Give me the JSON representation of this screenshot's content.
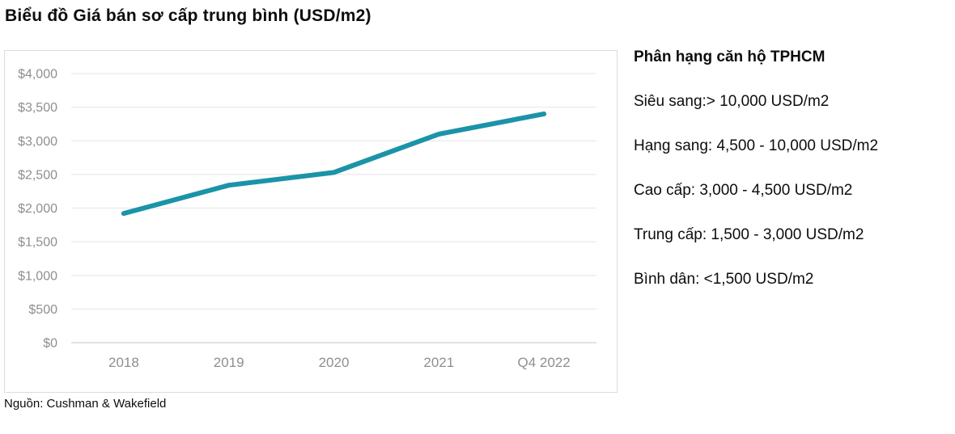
{
  "title": "Biểu đồ Giá bán sơ cấp trung bình (USD/m2)",
  "source": "Nguồn: Cushman & Wakefield",
  "legend": {
    "title": "Phân hạng căn hộ TPHCM",
    "items": [
      "Siêu sang:> 10,000 USD/m2",
      "Hạng sang: 4,500 - 10,000 USD/m2",
      "Cao cấp: 3,000 - 4,500 USD/m2",
      "Trung cấp: 1,500 - 3,000 USD/m2",
      "Bình dân: <1,500 USD/m2"
    ]
  },
  "chart_data": {
    "type": "line",
    "title": "Biểu đồ Giá bán sơ cấp trung bình (USD/m2)",
    "categories": [
      "2018",
      "2019",
      "2020",
      "2021",
      "Q4 2022"
    ],
    "values": [
      1920,
      2340,
      2530,
      3100,
      3400
    ],
    "series_name": "Giá bán sơ cấp trung bình (USD/m2)",
    "xlabel": "",
    "ylabel": "",
    "ylim": [
      0,
      4000
    ],
    "ytick_step": 500,
    "ytick_prefix": "$",
    "grid": true,
    "legend_position": "none",
    "line_color": "#1b93a8"
  },
  "colors": {
    "line": "#1b93a8",
    "axis_text": "#8f8f8f",
    "grid_line": "#eaeaea",
    "axis_line": "#d8d8d8",
    "box_border": "#dcdcdc",
    "text": "#0d0d0d"
  }
}
